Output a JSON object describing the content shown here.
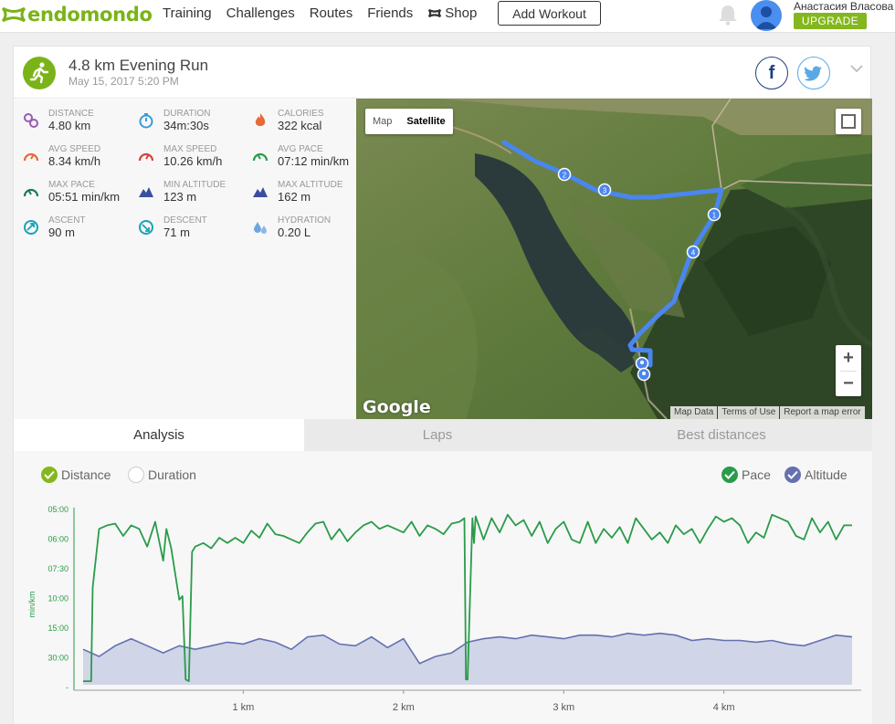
{
  "brand": {
    "name": "endomondo",
    "color": "#7ab317"
  },
  "nav": {
    "items": [
      "Training",
      "Challenges",
      "Routes",
      "Friends",
      "Shop"
    ]
  },
  "add_workout": "Add Workout",
  "user": {
    "name": "Анастасия Власова",
    "upgrade": "UPGRADE"
  },
  "workout": {
    "title": "4.8 km Evening Run",
    "date": "May 15, 2017 5:20 PM"
  },
  "share": {
    "facebook": "f"
  },
  "stats": [
    {
      "label": "Distance",
      "value": "4.80 km",
      "icon": "pin-icon",
      "color": "#9b59b6"
    },
    {
      "label": "Duration",
      "value": "34m:30s",
      "icon": "stopwatch-icon",
      "color": "#3b9ad9"
    },
    {
      "label": "Calories",
      "value": "322 kcal",
      "icon": "flame-icon",
      "color": "#e8683a"
    },
    {
      "label": "Avg Speed",
      "value": "8.34 km/h",
      "icon": "speedometer-icon",
      "color": "#e8683a"
    },
    {
      "label": "Max Speed",
      "value": "10.26 km/h",
      "icon": "speedometer-icon",
      "color": "#d9403a"
    },
    {
      "label": "Avg Pace",
      "value": "07:12 min/km",
      "icon": "pace-gauge-icon",
      "color": "#2a9b4a"
    },
    {
      "label": "Max Pace",
      "value": "05:51 min/km",
      "icon": "pace-gauge-icon",
      "color": "#1e7a55"
    },
    {
      "label": "Min Altitude",
      "value": "123 m",
      "icon": "mountain-icon",
      "color": "#3a4fa0"
    },
    {
      "label": "Max Altitude",
      "value": "162 m",
      "icon": "mountain-icon",
      "color": "#3a4fa0"
    },
    {
      "label": "Ascent",
      "value": "90 m",
      "icon": "ascent-icon",
      "color": "#1aa1b8"
    },
    {
      "label": "Descent",
      "value": "71 m",
      "icon": "descent-icon",
      "color": "#1aa1b8"
    },
    {
      "label": "Hydration",
      "value": "0.20 L",
      "icon": "droplets-icon",
      "color": "#6ea6e0"
    }
  ],
  "map": {
    "types": [
      "Map",
      "Satellite"
    ],
    "active_type": "Satellite",
    "zoom_in": "+",
    "zoom_out": "−",
    "logo": "Google",
    "attribution": [
      "Map Data",
      "Terms of Use",
      "Report a map error"
    ],
    "route_color": "#4a86f0",
    "markers": [
      "1",
      "2",
      "3",
      "4"
    ]
  },
  "tabs": [
    "Analysis",
    "Laps",
    "Best distances"
  ],
  "active_tab": "Analysis",
  "chart_toggles": {
    "x_axis": [
      {
        "label": "Distance",
        "checked": true
      },
      {
        "label": "Duration",
        "checked": false
      }
    ],
    "series": [
      {
        "label": "Pace",
        "checked": true,
        "color": "#2a9b4a"
      },
      {
        "label": "Altitude",
        "checked": true,
        "color": "#6470b0"
      }
    ]
  },
  "chart_data": {
    "type": "line",
    "ylabel": "min/km",
    "y_ticks": [
      "05:00",
      "06:00",
      "07:30",
      "10:00",
      "15:00",
      "30:00",
      "-"
    ],
    "x_ticks": [
      "1 km",
      "2 km",
      "3 km",
      "4 km"
    ],
    "x_tick_values": [
      1,
      2,
      3,
      4
    ],
    "xlim": [
      0,
      4.8
    ],
    "series": [
      {
        "name": "Pace",
        "color": "#2a9b4a",
        "x": [
          0,
          0.05,
          0.06,
          0.1,
          0.15,
          0.2,
          0.25,
          0.3,
          0.35,
          0.4,
          0.45,
          0.5,
          0.52,
          0.55,
          0.6,
          0.62,
          0.64,
          0.66,
          0.68,
          0.7,
          0.75,
          0.8,
          0.85,
          0.9,
          0.95,
          1.0,
          1.05,
          1.1,
          1.15,
          1.2,
          1.25,
          1.3,
          1.35,
          1.4,
          1.45,
          1.5,
          1.55,
          1.6,
          1.65,
          1.7,
          1.75,
          1.8,
          1.85,
          1.9,
          1.95,
          2.0,
          2.05,
          2.1,
          2.15,
          2.2,
          2.25,
          2.3,
          2.35,
          2.38,
          2.39,
          2.4,
          2.43,
          2.44,
          2.45,
          2.5,
          2.55,
          2.6,
          2.65,
          2.7,
          2.75,
          2.8,
          2.85,
          2.9,
          2.95,
          3.0,
          3.05,
          3.1,
          3.15,
          3.2,
          3.25,
          3.3,
          3.35,
          3.4,
          3.45,
          3.5,
          3.55,
          3.6,
          3.65,
          3.7,
          3.75,
          3.8,
          3.85,
          3.9,
          3.95,
          4.0,
          4.05,
          4.1,
          4.15,
          4.2,
          4.25,
          4.3,
          4.35,
          4.4,
          4.45,
          4.5,
          4.55,
          4.6,
          4.65,
          4.7,
          4.75,
          4.8
        ],
        "y": [
          0.98,
          0.98,
          0.45,
          0.12,
          0.1,
          0.09,
          0.16,
          0.1,
          0.12,
          0.22,
          0.08,
          0.3,
          0.12,
          0.23,
          0.52,
          0.5,
          0.97,
          0.98,
          0.25,
          0.22,
          0.2,
          0.23,
          0.17,
          0.2,
          0.17,
          0.2,
          0.13,
          0.17,
          0.09,
          0.15,
          0.16,
          0.18,
          0.2,
          0.14,
          0.09,
          0.08,
          0.18,
          0.12,
          0.19,
          0.14,
          0.1,
          0.08,
          0.12,
          0.1,
          0.12,
          0.14,
          0.08,
          0.16,
          0.1,
          0.12,
          0.15,
          0.09,
          0.08,
          0.06,
          0.97,
          0.97,
          0.06,
          0.2,
          0.05,
          0.18,
          0.06,
          0.14,
          0.04,
          0.1,
          0.07,
          0.16,
          0.08,
          0.2,
          0.12,
          0.08,
          0.18,
          0.2,
          0.08,
          0.2,
          0.12,
          0.17,
          0.11,
          0.2,
          0.06,
          0.12,
          0.18,
          0.14,
          0.2,
          0.1,
          0.15,
          0.12,
          0.2,
          0.12,
          0.05,
          0.08,
          0.06,
          0.1,
          0.2,
          0.14,
          0.17,
          0.04,
          0.06,
          0.08,
          0.16,
          0.18,
          0.06,
          0.14,
          0.08,
          0.18,
          0.1,
          0.1
        ]
      },
      {
        "name": "Altitude",
        "color": "#6470b0",
        "x": [
          0,
          0.1,
          0.2,
          0.3,
          0.4,
          0.5,
          0.6,
          0.7,
          0.8,
          0.9,
          1.0,
          1.1,
          1.2,
          1.3,
          1.4,
          1.5,
          1.6,
          1.7,
          1.8,
          1.9,
          2.0,
          2.1,
          2.2,
          2.3,
          2.4,
          2.5,
          2.6,
          2.7,
          2.8,
          2.9,
          3.0,
          3.1,
          3.2,
          3.3,
          3.4,
          3.5,
          3.6,
          3.7,
          3.8,
          3.9,
          4.0,
          4.1,
          4.2,
          4.3,
          4.4,
          4.5,
          4.6,
          4.7,
          4.8
        ],
        "y": [
          0.8,
          0.84,
          0.78,
          0.74,
          0.78,
          0.82,
          0.78,
          0.8,
          0.78,
          0.76,
          0.77,
          0.74,
          0.76,
          0.8,
          0.73,
          0.72,
          0.77,
          0.78,
          0.73,
          0.79,
          0.74,
          0.88,
          0.84,
          0.82,
          0.76,
          0.74,
          0.73,
          0.74,
          0.72,
          0.73,
          0.74,
          0.72,
          0.72,
          0.73,
          0.71,
          0.72,
          0.71,
          0.72,
          0.75,
          0.74,
          0.75,
          0.75,
          0.76,
          0.75,
          0.77,
          0.78,
          0.75,
          0.72,
          0.73
        ]
      }
    ],
    "grid": false
  }
}
